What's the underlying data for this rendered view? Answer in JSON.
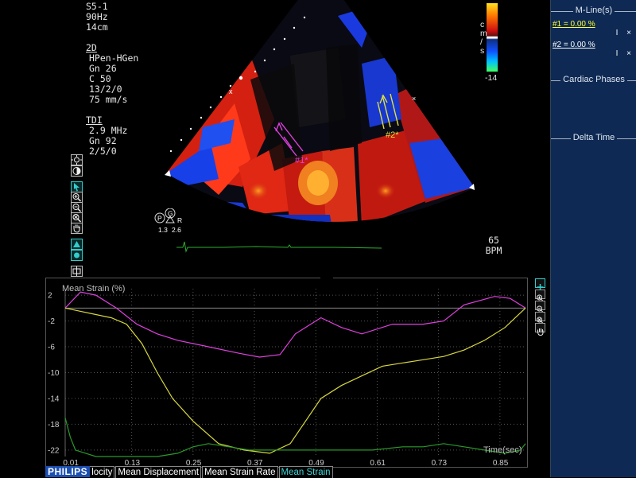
{
  "params": {
    "probe": "S5-1",
    "frame_rate": "90Hz",
    "depth": "14cm",
    "mode_2d": {
      "title": "2D",
      "lines": [
        "HPen-HGen",
        "Gn 26",
        "C 50",
        "13/2/0",
        "75 mm/s"
      ]
    },
    "tdi": {
      "title": "TDI",
      "lines": [
        "2.9 MHz",
        "Gn 92",
        "2/5/0"
      ]
    }
  },
  "colorbar": {
    "unit_letters": [
      "c",
      "m",
      "/",
      "s"
    ],
    "top_value": "",
    "bottom_value": "-14"
  },
  "heart_rate": {
    "value": "65",
    "unit": "BPM"
  },
  "markers": {
    "m1": "#1*",
    "m2": "#2*",
    "probe_p": "P",
    "probe_g": "G",
    "probe_r": "R",
    "scale_a": "1.3",
    "scale_b": "2.6"
  },
  "right_panel": {
    "mlines_title": "M-Line(s)",
    "mlines": [
      {
        "label": "#1 = 0.00 %",
        "color": "#ffff30",
        "actions": "I ×"
      },
      {
        "label": "#2 = 0.00 %",
        "color": "#ffffff",
        "actions": "I ×"
      }
    ],
    "cardiac_phases": "Cardiac Phases",
    "delta_time": "Delta Time"
  },
  "graph": {
    "title": "Mean Strain (%)",
    "time_label": "Time(sec)"
  },
  "tabs": {
    "brand": "PHILIPS",
    "items": [
      "locity",
      "Mean Displacement",
      "Mean Strain Rate",
      "Mean Strain"
    ],
    "active_index": 3
  },
  "chart_data": {
    "type": "line",
    "title": "Mean Strain (%)",
    "xlabel": "Time(sec)",
    "ylabel": "",
    "xlim": [
      0.0,
      0.9
    ],
    "ylim": [
      -23,
      3
    ],
    "x_ticks": [
      "0.01",
      "0.13",
      "0.25",
      "0.37",
      "0.49",
      "0.61",
      "0.73",
      "0.85"
    ],
    "y_ticks": [
      "2",
      "-2",
      "-6",
      "-10",
      "-14",
      "-18",
      "-22"
    ],
    "grid": true,
    "series": [
      {
        "color": "#e040e0",
        "x": [
          0.0,
          0.03,
          0.06,
          0.1,
          0.14,
          0.18,
          0.22,
          0.28,
          0.34,
          0.38,
          0.42,
          0.45,
          0.5,
          0.54,
          0.58,
          0.64,
          0.7,
          0.74,
          0.78,
          0.84,
          0.87,
          0.9
        ],
        "y": [
          0.0,
          2.5,
          2.0,
          0.0,
          -2.5,
          -4.0,
          -5.0,
          -6.0,
          -7.0,
          -7.6,
          -7.2,
          -4.0,
          -1.5,
          -3.0,
          -4.0,
          -2.5,
          -2.5,
          -2.0,
          0.5,
          1.8,
          1.5,
          0.0
        ]
      },
      {
        "color": "#d8d840",
        "x": [
          0.0,
          0.03,
          0.06,
          0.09,
          0.12,
          0.15,
          0.18,
          0.21,
          0.25,
          0.3,
          0.35,
          0.4,
          0.44,
          0.47,
          0.5,
          0.54,
          0.58,
          0.62,
          0.66,
          0.7,
          0.74,
          0.78,
          0.82,
          0.86,
          0.9
        ],
        "y": [
          0.0,
          -0.5,
          -1.0,
          -1.5,
          -2.5,
          -5.5,
          -10.0,
          -14.0,
          -17.5,
          -21.0,
          -22.0,
          -22.5,
          -21.0,
          -17.5,
          -14.0,
          -12.0,
          -10.5,
          -9.0,
          -8.5,
          -8.0,
          -7.5,
          -6.5,
          -5.0,
          -3.0,
          0.0
        ]
      },
      {
        "color": "#2a9a2a",
        "x": [
          0.0,
          0.01,
          0.02,
          0.04,
          0.06,
          0.1,
          0.14,
          0.18,
          0.22,
          0.25,
          0.28,
          0.32,
          0.36,
          0.4,
          0.44,
          0.48,
          0.54,
          0.6,
          0.66,
          0.7,
          0.74,
          0.78,
          0.82,
          0.86,
          0.89,
          0.9
        ],
        "y": [
          -17.0,
          -20.0,
          -22.0,
          -22.5,
          -23.0,
          -23.0,
          -23.0,
          -23.0,
          -22.5,
          -21.5,
          -21.0,
          -21.5,
          -22.0,
          -22.0,
          -22.0,
          -22.0,
          -22.0,
          -22.0,
          -21.5,
          -21.5,
          -21.0,
          -21.5,
          -22.0,
          -22.5,
          -22.0,
          -21.0
        ]
      }
    ]
  }
}
